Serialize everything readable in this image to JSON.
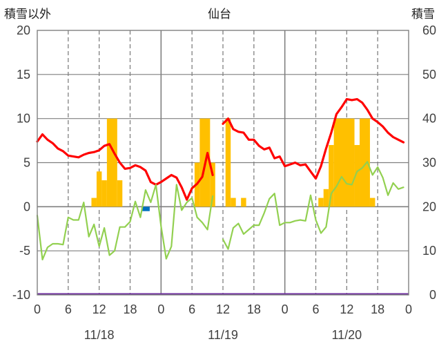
{
  "chart_data": {
    "type": "bar+line",
    "title": "仙台",
    "left_axis_label": "積雪以外",
    "right_axis_label": "積雪",
    "left_ylim": [
      -10,
      20
    ],
    "left_ticks": [
      "-10",
      "-5",
      "0",
      "5",
      "10",
      "15",
      "20"
    ],
    "right_ylim": [
      0,
      60
    ],
    "right_ticks": [
      "0",
      "10",
      "20",
      "30",
      "40",
      "50",
      "60"
    ],
    "x_range_hours": [
      0,
      72
    ],
    "x_tick_hours": [
      0,
      6,
      12,
      18,
      24,
      30,
      36,
      42,
      48,
      54,
      60,
      66,
      72
    ],
    "x_tick_labels": [
      "0",
      "6",
      "12",
      "18",
      "0",
      "6",
      "12",
      "18",
      "0",
      "6",
      "12",
      "18",
      "0"
    ],
    "date_labels": [
      {
        "hour": 12,
        "label": "11/18"
      },
      {
        "hour": 36,
        "label": "11/19"
      },
      {
        "hour": 60,
        "label": "11/20"
      }
    ],
    "colors": {
      "temperature": "#ff0000",
      "dewpoint": "#92d050",
      "snow_depth": "#ffc000",
      "precip": "#0070c0",
      "baseline": "#7030a0",
      "grid": "#7f7f7f"
    },
    "series": [
      {
        "key": "temperature",
        "x": [
          0,
          1,
          2,
          3,
          4,
          5,
          6,
          7,
          8,
          9,
          10,
          11,
          12,
          13,
          14,
          15,
          16,
          17,
          18,
          19,
          20,
          21,
          22,
          23,
          24,
          25,
          26,
          27,
          28,
          29,
          30,
          31,
          32,
          33,
          34,
          35,
          null,
          36,
          37,
          38,
          39,
          40,
          41,
          42,
          43,
          44,
          45,
          46,
          47,
          48,
          49,
          50,
          51,
          52,
          53,
          54,
          55,
          56,
          57,
          58,
          59,
          60,
          61,
          62,
          63,
          64,
          65,
          66,
          67,
          68,
          69,
          70,
          71
        ],
        "values": [
          7.4,
          8.2,
          7.6,
          7.2,
          6.6,
          6.3,
          5.8,
          5.7,
          5.6,
          5.9,
          6.1,
          6.2,
          6.4,
          6.9,
          7.1,
          6.0,
          5.0,
          4.3,
          4.4,
          4.7,
          4.5,
          4.1,
          2.8,
          2.5,
          2.8,
          3.2,
          3.6,
          3.3,
          2.2,
          0.8,
          2.1,
          2.6,
          3.4,
          6.1,
          3.6,
          null,
          null,
          9.4,
          10.0,
          8.8,
          8.5,
          8.4,
          7.6,
          7.6,
          6.9,
          6.5,
          6.7,
          5.5,
          5.7,
          4.6,
          4.8,
          5.0,
          4.7,
          4.8,
          4.0,
          3.2,
          4.6,
          6.6,
          8.4,
          10.5,
          11.3,
          12.2,
          12.1,
          12.2,
          11.8,
          11.0,
          10.0,
          9.6,
          9.1,
          8.4,
          7.9,
          7.6,
          7.3
        ]
      },
      {
        "key": "dewpoint",
        "x": [
          0,
          1,
          2,
          3,
          4,
          5,
          6,
          7,
          8,
          9,
          10,
          11,
          12,
          13,
          14,
          15,
          16,
          17,
          18,
          19,
          20,
          21,
          22,
          23,
          24,
          25,
          26,
          27,
          28,
          29,
          30,
          31,
          32,
          33,
          34,
          35,
          null,
          36,
          37,
          38,
          39,
          40,
          41,
          42,
          43,
          44,
          45,
          46,
          47,
          48,
          49,
          50,
          51,
          52,
          53,
          54,
          55,
          56,
          57,
          58,
          59,
          60,
          61,
          62,
          63,
          64,
          65,
          66,
          67,
          68,
          69,
          70,
          71
        ],
        "values": [
          -1.0,
          -6.0,
          -4.6,
          -4.2,
          -4.2,
          -4.3,
          -1.2,
          -1.5,
          -1.5,
          0.5,
          -3.4,
          -2.0,
          -4.5,
          -2.4,
          -5.5,
          -5.0,
          -2.3,
          -2.3,
          -1.7,
          0.6,
          -1.2,
          1.9,
          0.5,
          2.5,
          -2.2,
          -5.9,
          -4.5,
          2.5,
          -0.4,
          0.5,
          1.0,
          -1.2,
          -1.8,
          -2.6,
          1.2,
          null,
          null,
          -3.7,
          -4.8,
          -2.4,
          -1.9,
          -3.1,
          -2.6,
          -2.1,
          -2.1,
          -0.7,
          0.9,
          1.5,
          -2.1,
          -1.8,
          -1.8,
          -1.6,
          -1.5,
          -1.6,
          1.3,
          -1.5,
          -3.0,
          -2.3,
          1.5,
          2.3,
          3.4,
          2.6,
          2.5,
          4.0,
          4.4,
          5.1,
          3.6,
          4.5,
          3.3,
          1.3,
          2.7,
          2.0,
          2.2
        ]
      }
    ],
    "snow_depth": {
      "x": [
        32,
        33,
        34,
        35,
        36,
        37,
        38,
        39,
        40,
        41,
        42,
        43,
        44,
        45,
        46,
        47,
        48,
        49,
        50,
        51,
        52,
        53,
        54,
        55,
        56,
        57,
        58,
        59,
        60,
        61,
        62,
        63,
        64,
        65,
        66,
        67,
        68,
        69,
        70,
        71,
        72,
        73,
        74,
        75,
        76,
        77,
        78,
        79,
        80,
        81,
        82,
        83,
        84,
        85,
        86,
        87,
        88,
        89,
        90,
        91,
        92,
        93,
        94,
        95,
        96,
        97,
        98,
        99,
        100,
        101,
        102,
        103
      ],
      "values": [],
      "bars": [
        {
          "x": 10.5,
          "w": 1,
          "v": 22
        },
        {
          "x": 11.5,
          "w": 1,
          "v": 28
        },
        {
          "x": 12.5,
          "w": 1,
          "v": 26
        },
        {
          "x": 13.5,
          "w": 2,
          "v": 40
        },
        {
          "x": 15.5,
          "w": 1,
          "v": 26
        },
        {
          "x": 30.5,
          "w": 1,
          "v": 30
        },
        {
          "x": 31.5,
          "w": 2,
          "v": 40
        },
        {
          "x": 33.5,
          "w": 1,
          "v": 30
        },
        {
          "x": 36.5,
          "w": 1,
          "v": 40
        },
        {
          "x": 37.5,
          "w": 1,
          "v": 22
        },
        {
          "x": 39.5,
          "w": 1,
          "v": 22
        },
        {
          "x": 54.5,
          "w": 1,
          "v": 22
        },
        {
          "x": 55.5,
          "w": 1,
          "v": 24
        },
        {
          "x": 56.5,
          "w": 1,
          "v": 34
        },
        {
          "x": 57.5,
          "w": 4,
          "v": 40
        },
        {
          "x": 61.5,
          "w": 1,
          "v": 34
        },
        {
          "x": 62.5,
          "w": 2,
          "v": 40
        },
        {
          "x": 64.5,
          "w": 1,
          "v": 22
        }
      ]
    },
    "precip": {
      "bars": [
        {
          "x": 21,
          "w": 1.6,
          "v": -0.5
        }
      ]
    },
    "grid": true,
    "legend": "none"
  }
}
